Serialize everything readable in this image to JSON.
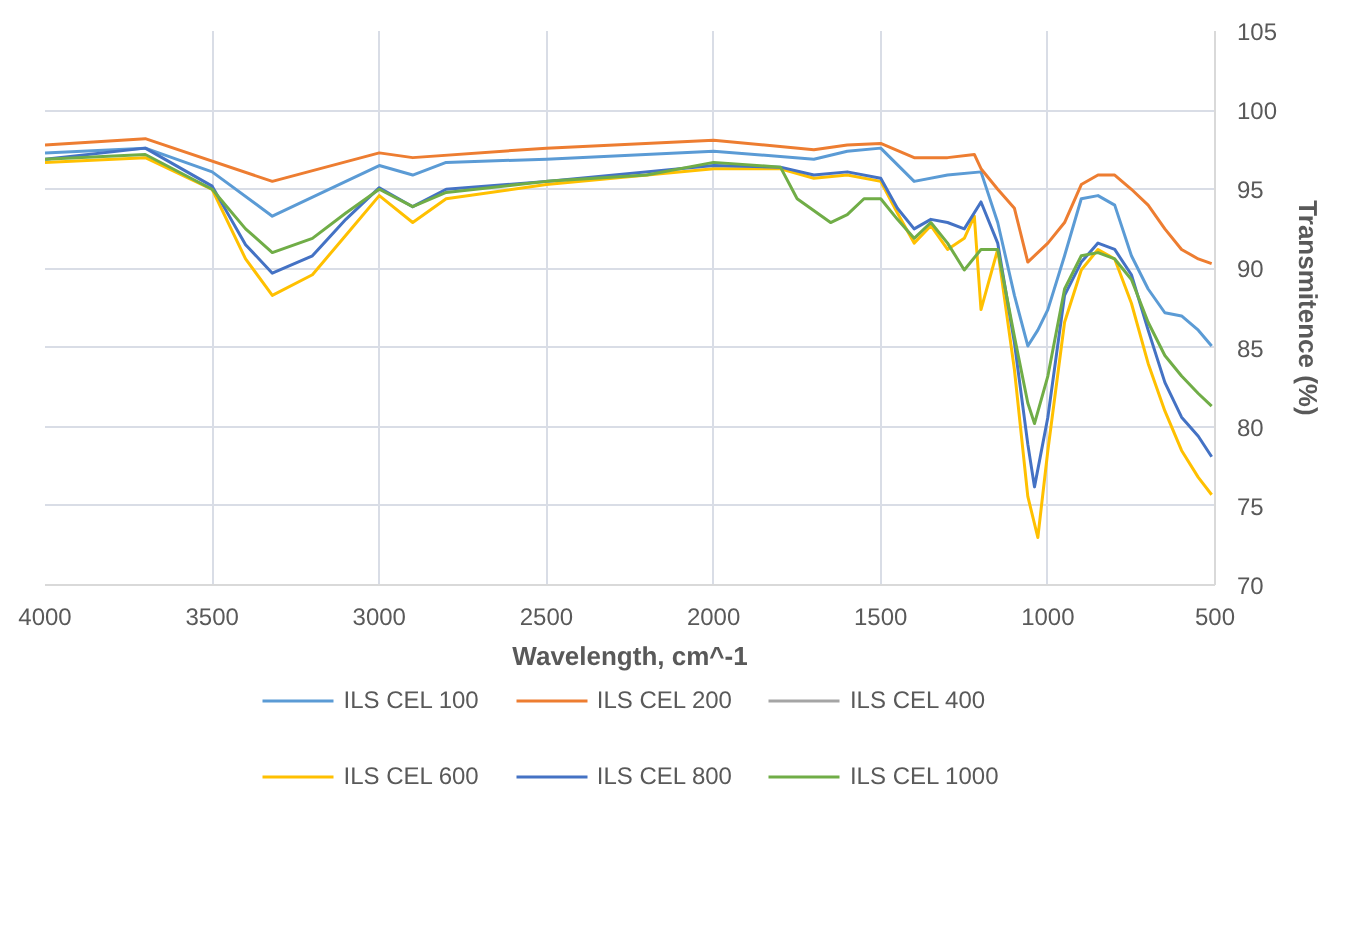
{
  "chart_data": {
    "type": "line",
    "xlabel": "Wavelength, cm^-1",
    "ylabel": "Transmitence (%)",
    "xlim": [
      4000,
      500
    ],
    "xticks": [
      4000,
      3500,
      3000,
      2500,
      2000,
      1500,
      1000,
      500
    ],
    "ylim": [
      70,
      105
    ],
    "yticks": [
      70,
      75,
      80,
      85,
      90,
      95,
      100,
      105
    ],
    "grid": true,
    "legend": "bottom",
    "marker": "none",
    "line_style": "solid",
    "series": [
      {
        "name": "ILS CEL 100",
        "color": "#5b9bd5",
        "x": [
          4000,
          3700,
          3500,
          3320,
          3100,
          3000,
          2900,
          2800,
          2500,
          2000,
          1700,
          1600,
          1500,
          1400,
          1300,
          1200,
          1150,
          1100,
          1060,
          1030,
          1000,
          950,
          900,
          850,
          800,
          750,
          700,
          650,
          600,
          550,
          510
        ],
        "values": [
          97.3,
          97.6,
          96.1,
          93.3,
          95.5,
          96.5,
          95.9,
          96.7,
          96.9,
          97.4,
          96.9,
          97.4,
          97.6,
          95.5,
          95.9,
          96.1,
          92.9,
          88.3,
          85.1,
          86.1,
          87.4,
          90.8,
          94.4,
          94.6,
          94.0,
          90.8,
          88.7,
          87.2,
          87.0,
          86.1,
          85.1
        ]
      },
      {
        "name": "ILS CEL 200",
        "color": "#ed7d31",
        "x": [
          4000,
          3700,
          3320,
          3000,
          2900,
          2500,
          2000,
          1700,
          1600,
          1500,
          1400,
          1300,
          1220,
          1200,
          1150,
          1100,
          1060,
          1000,
          950,
          900,
          850,
          800,
          750,
          700,
          650,
          600,
          550,
          510
        ],
        "values": [
          97.8,
          98.2,
          95.5,
          97.3,
          97.0,
          97.6,
          98.1,
          97.5,
          97.8,
          97.9,
          97.0,
          97.0,
          97.2,
          96.3,
          95.0,
          93.8,
          90.4,
          91.6,
          92.9,
          95.3,
          95.9,
          95.9,
          95.0,
          94.0,
          92.5,
          91.2,
          90.6,
          90.3
        ]
      },
      {
        "name": "ILS CEL 400",
        "color": "#a5a5a5"
      },
      {
        "name": "ILS CEL 600",
        "color": "#ffc000",
        "x": [
          4000,
          3700,
          3500,
          3400,
          3320,
          3200,
          3100,
          3000,
          2900,
          2800,
          2500,
          2000,
          1800,
          1700,
          1600,
          1500,
          1450,
          1400,
          1350,
          1300,
          1250,
          1220,
          1200,
          1150,
          1100,
          1060,
          1030,
          1000,
          950,
          900,
          850,
          800,
          750,
          700,
          650,
          600,
          550,
          510
        ],
        "values": [
          96.7,
          97.0,
          95.0,
          90.6,
          88.3,
          89.6,
          92.1,
          94.6,
          92.9,
          94.4,
          95.3,
          96.3,
          96.3,
          95.7,
          95.9,
          95.5,
          93.5,
          91.6,
          92.7,
          91.2,
          91.9,
          93.3,
          87.4,
          91.2,
          83.6,
          75.6,
          73.0,
          78.5,
          86.6,
          89.9,
          91.2,
          90.6,
          87.8,
          84.0,
          81.0,
          78.5,
          76.8,
          75.7
        ]
      },
      {
        "name": "ILS CEL 800",
        "color": "#4472c4",
        "x": [
          4000,
          3700,
          3500,
          3400,
          3320,
          3200,
          3100,
          3000,
          2900,
          2800,
          2500,
          2000,
          1800,
          1700,
          1600,
          1500,
          1450,
          1400,
          1350,
          1300,
          1250,
          1200,
          1150,
          1100,
          1060,
          1040,
          1000,
          950,
          900,
          850,
          800,
          750,
          700,
          650,
          600,
          550,
          510
        ],
        "values": [
          96.9,
          97.6,
          95.2,
          91.5,
          89.7,
          90.8,
          93.1,
          95.1,
          93.9,
          95.0,
          95.5,
          96.5,
          96.4,
          95.9,
          96.1,
          95.7,
          93.8,
          92.5,
          93.1,
          92.9,
          92.5,
          94.2,
          91.6,
          85.3,
          78.9,
          76.2,
          80.6,
          88.3,
          90.4,
          91.6,
          91.2,
          89.6,
          86.1,
          82.8,
          80.6,
          79.4,
          78.1
        ]
      },
      {
        "name": "ILS CEL 1000",
        "color": "#70ad47",
        "x": [
          4000,
          3700,
          3500,
          3400,
          3320,
          3200,
          3100,
          3000,
          2900,
          2800,
          2500,
          2200,
          2000,
          1800,
          1750,
          1650,
          1600,
          1550,
          1500,
          1450,
          1400,
          1350,
          1300,
          1250,
          1200,
          1150,
          1100,
          1060,
          1040,
          1000,
          950,
          900,
          850,
          800,
          750,
          700,
          650,
          600,
          550,
          510
        ],
        "values": [
          96.9,
          97.2,
          95.0,
          92.5,
          91.0,
          91.9,
          93.5,
          95.0,
          93.9,
          94.8,
          95.5,
          95.9,
          96.7,
          96.4,
          94.4,
          92.9,
          93.4,
          94.4,
          94.4,
          93.1,
          91.9,
          92.9,
          91.6,
          89.9,
          91.2,
          91.2,
          85.7,
          81.5,
          80.2,
          83.2,
          88.7,
          90.8,
          91.0,
          90.6,
          89.3,
          86.6,
          84.5,
          83.2,
          82.1,
          81.3
        ]
      }
    ]
  }
}
